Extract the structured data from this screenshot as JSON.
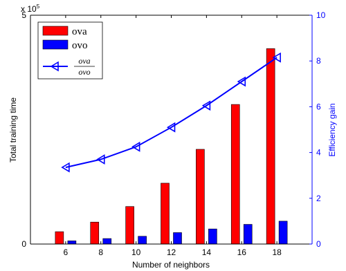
{
  "chart_data": {
    "type": "bar",
    "categories": [
      "6",
      "8",
      "10",
      "12",
      "14",
      "16",
      "18"
    ],
    "series": [
      {
        "name": "ova",
        "color": "#ff0000",
        "values": [
          0.27,
          0.48,
          0.82,
          1.33,
          2.07,
          3.05,
          4.27
        ]
      },
      {
        "name": "ovo",
        "color": "#0000ff",
        "values": [
          0.07,
          0.12,
          0.17,
          0.25,
          0.33,
          0.43,
          0.5
        ]
      }
    ],
    "line_series": {
      "name_numerator": "ova",
      "name_denominator": "ovo",
      "color": "#0000ff",
      "axis": "right",
      "marker": "left-triangle",
      "values": [
        3.35,
        3.7,
        4.25,
        5.1,
        6.05,
        7.1,
        8.15
      ]
    },
    "xlabel": "Number of neighbors",
    "ylabel": "Total training time",
    "y2label": "Efficiency gain",
    "ylim": [
      0,
      5
    ],
    "y2lim": [
      0,
      10
    ],
    "xlim": [
      4,
      20
    ],
    "y_exponent_label": "x 10",
    "y_exponent_power": "5",
    "yticks": [
      "0",
      "5"
    ],
    "y2ticks": [
      "0",
      "2",
      "4",
      "6",
      "8",
      "10"
    ],
    "legend_position": "top-left",
    "axis_color_right": "#0000ff"
  }
}
